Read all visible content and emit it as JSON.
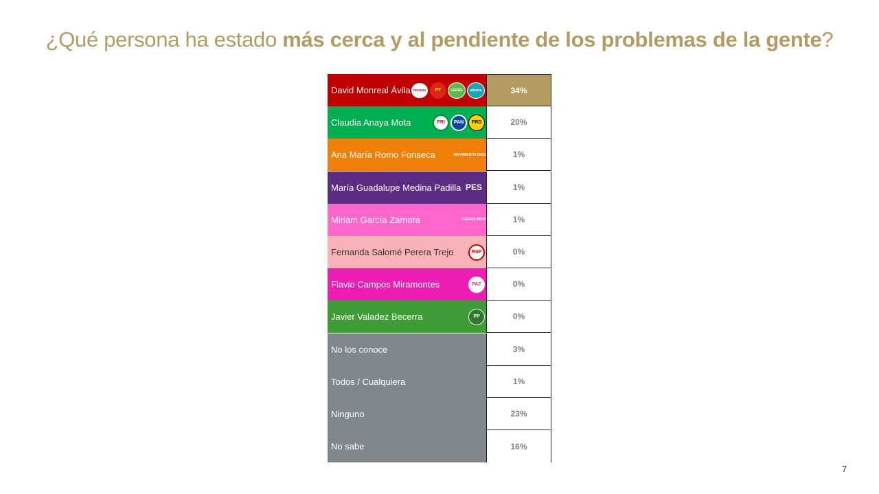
{
  "title": {
    "normal_1": "¿Qué persona ha estado ",
    "bold": "más cerca y al pendiente de los problemas de la gente",
    "normal_2": "?"
  },
  "page_number": "7",
  "chart_data": {
    "type": "table",
    "rows": [
      {
        "name": "David Monreal Ávila",
        "value": "34%",
        "color": "#c00000",
        "highlight": true,
        "logos": [
          {
            "icon": "morena-logo",
            "text": "morena"
          },
          {
            "icon": "pt-logo",
            "text": "PT"
          },
          {
            "icon": "verde-logo",
            "text": "VERDE"
          },
          {
            "icon": "nueva-alianza-logo",
            "text": "alianza"
          }
        ]
      },
      {
        "name": "Claudia Anaya Mota",
        "value": "20%",
        "color": "#00b050",
        "logos": [
          {
            "icon": "pri-logo",
            "text": "PRI"
          },
          {
            "icon": "pan-logo",
            "text": "PAN"
          },
          {
            "icon": "prd-logo",
            "text": "PRD"
          }
        ]
      },
      {
        "name": "Ana María Romo Fonseca",
        "value": "1%",
        "color": "#f07f09",
        "logos": [
          {
            "icon": "movimiento-ciudadano-logo",
            "text": "MOVIMIENTO CIUDADANO"
          }
        ]
      },
      {
        "name": "María Guadalupe Medina Padilla",
        "value": "1%",
        "color": "#5b2c82",
        "logos": [
          {
            "icon": "pes-logo",
            "text": "PES"
          }
        ]
      },
      {
        "name": "Miriam García Zamora",
        "value": "1%",
        "color": "#ff66cc",
        "logos": [
          {
            "icon": "fuerza-mexico-logo",
            "text": "FUERZA MÉXICO"
          }
        ]
      },
      {
        "name": "Fernanda Salomé Perera Trejo",
        "value": "0%",
        "color": "#f9b2b7",
        "dark_text": true,
        "logos": [
          {
            "icon": "rsp-logo",
            "text": "RSP"
          }
        ]
      },
      {
        "name": "Flavio Campos Miramontes",
        "value": "0%",
        "color": "#ec1cb4",
        "logos": [
          {
            "icon": "paz-logo",
            "text": "PAZ"
          }
        ]
      },
      {
        "name": "Javier Valadez Becerra",
        "value": "0%",
        "color": "#3f9b35",
        "logos": [
          {
            "icon": "pp-logo",
            "text": "PP"
          }
        ]
      },
      {
        "name": "No los conoce",
        "value": "3%",
        "color": "#7f868c",
        "logos": []
      },
      {
        "name": "Todos / Cualquiera",
        "value": "1%",
        "color": "#7f868c",
        "logos": []
      },
      {
        "name": "Ninguno",
        "value": "23%",
        "color": "#7f868c",
        "logos": []
      },
      {
        "name": "No sabe",
        "value": "16%",
        "color": "#7f868c",
        "logos": []
      }
    ]
  }
}
